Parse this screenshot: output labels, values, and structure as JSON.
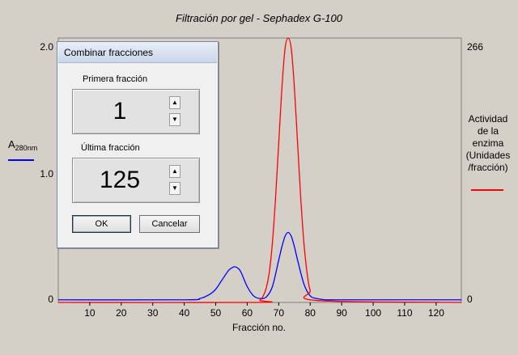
{
  "chart_data": {
    "type": "line",
    "title": "Filtración por gel - Sephadex G-100",
    "xlabel": "Fracción no.",
    "xlim": [
      0,
      128
    ],
    "x_ticks": [
      "10",
      "20",
      "30",
      "40",
      "50",
      "60",
      "70",
      "80",
      "90",
      "100",
      "110",
      "120"
    ],
    "left_axis": {
      "label_main": "A",
      "label_sub": "280nm",
      "ticks": [
        "0",
        "1.0",
        "2.0"
      ],
      "ylim": [
        0,
        2.0
      ]
    },
    "right_axis": {
      "label": [
        "Actividad",
        "de la",
        "enzima",
        "(Unidades",
        "/fracción)"
      ],
      "ticks": [
        "0",
        "266"
      ],
      "ylim": [
        0,
        266
      ]
    },
    "series": [
      {
        "axis": "left",
        "color": "#0000ff",
        "x": [
          0,
          40,
          45,
          48,
          50,
          52,
          54,
          55,
          56,
          57,
          58,
          60,
          62,
          64,
          66,
          68,
          70,
          71,
          72,
          73,
          74,
          75,
          76,
          78,
          80,
          82,
          85,
          90,
          128
        ],
        "y": [
          0.02,
          0.02,
          0.03,
          0.06,
          0.1,
          0.17,
          0.24,
          0.26,
          0.27,
          0.26,
          0.23,
          0.12,
          0.05,
          0.03,
          0.04,
          0.12,
          0.32,
          0.42,
          0.5,
          0.53,
          0.5,
          0.42,
          0.32,
          0.14,
          0.05,
          0.03,
          0.02,
          0.02,
          0.02
        ]
      },
      {
        "axis": "right",
        "color": "#ff0000",
        "x": [
          0,
          63,
          64,
          65,
          66,
          67,
          68,
          69,
          70,
          71,
          72,
          73,
          74,
          75,
          76,
          77,
          78,
          79,
          80,
          82,
          128
        ],
        "y": [
          0,
          0,
          2,
          6,
          14,
          30,
          60,
          105,
          160,
          215,
          255,
          266,
          255,
          215,
          160,
          105,
          60,
          30,
          12,
          2,
          0
        ]
      }
    ]
  },
  "dialog": {
    "title": "Combinar fracciones",
    "first_label": "Primera fracción",
    "first_value": "1",
    "last_label": "Última fracción",
    "last_value": "125",
    "ok_label": "OK",
    "cancel_label": "Cancelar",
    "spin_up": "▲",
    "spin_down": "▼"
  }
}
